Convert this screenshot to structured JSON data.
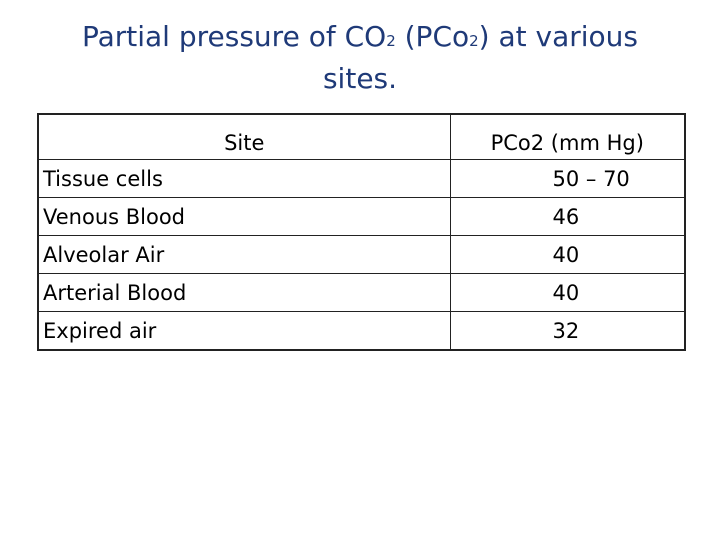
{
  "title": [
    "Partial pressure of CO",
    "2",
    " (PCo",
    "2",
    ") at various sites."
  ],
  "table": {
    "header": [
      "Site",
      "PCo2 (mm Hg)"
    ],
    "rows": [
      [
        "Tissue cells",
        "50 – 70"
      ],
      [
        "Venous Blood",
        46
      ],
      [
        "Alveolar Air",
        40
      ],
      [
        "Arterial Blood",
        40
      ],
      [
        "Expired air",
        32
      ]
    ]
  }
}
